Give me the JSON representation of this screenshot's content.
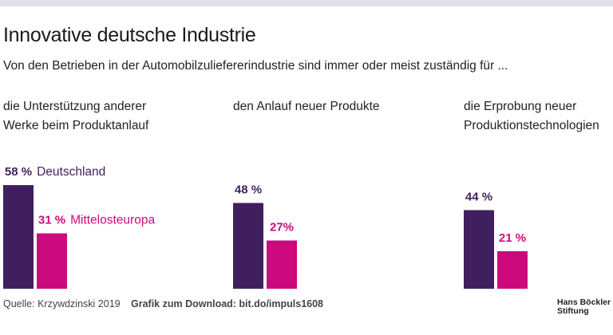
{
  "chart_data": {
    "type": "bar",
    "title": "Innovative deutsche Industrie",
    "subtitle": "Von den Betrieben in der Automobilzuliefererindustrie sind immer oder meist zuständig für ...",
    "categories": [
      "die Unterstützung anderer\nWerke beim Produktanlauf",
      "den Anlauf neuer Produkte",
      "die Erprobung neuer\nProduktionstechnologien"
    ],
    "series": [
      {
        "name": "Deutschland",
        "color": "#3f1f5e",
        "values": [
          58,
          48,
          44
        ],
        "value_labels": [
          "58 %",
          "48 %",
          "44 %"
        ]
      },
      {
        "name": "Mittelosteuropa",
        "color": "#cc0a7d",
        "values": [
          31,
          27,
          21
        ],
        "value_labels": [
          "31 %",
          "27%",
          "21 %"
        ]
      }
    ],
    "source": "Quelle: Krzywdzinski 2019",
    "note": "Grafik zum Download: bit.do/impuls1608",
    "logo": "Hans Böckler\nStiftung"
  }
}
